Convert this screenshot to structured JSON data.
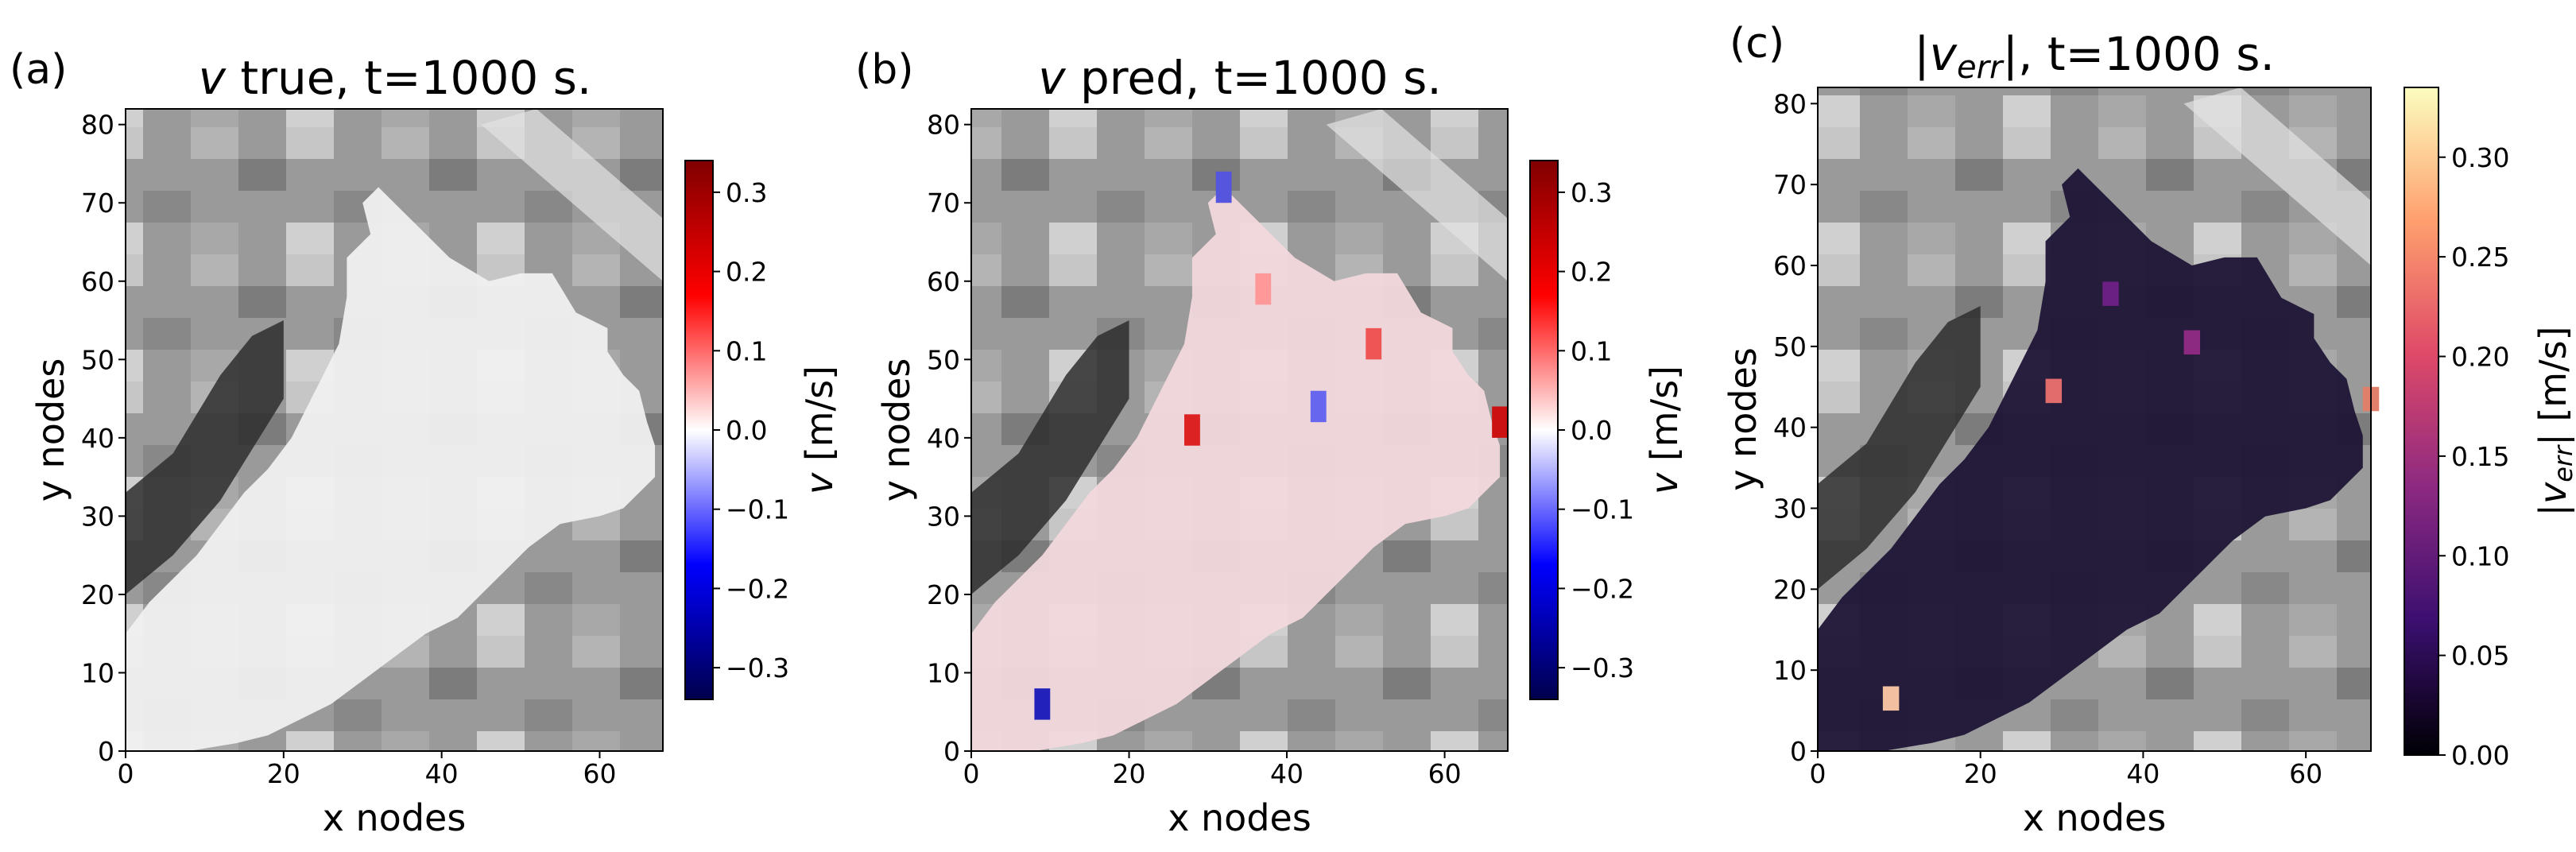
{
  "chart_data": [
    {
      "type": "heatmap",
      "panel_label": "(a)",
      "title_var": "v",
      "title_rest": " true, t=1000 s.",
      "xlabel": "x nodes",
      "ylabel": "y nodes",
      "xlim": [
        0,
        68
      ],
      "ylim": [
        0,
        82
      ],
      "xticks": [
        "0",
        "20",
        "40",
        "60"
      ],
      "yticks": [
        "0",
        "10",
        "20",
        "30",
        "40",
        "50",
        "60",
        "70",
        "80"
      ],
      "colormap": "seismic",
      "colorbar_label_var": "v",
      "colorbar_label_unit": " [m/s]",
      "colorbar_range": [
        -0.34,
        0.34
      ],
      "colorbar_ticks": [
        "0.3",
        "0.2",
        "0.1",
        "0.0",
        "−0.1",
        "−0.2",
        "−0.3"
      ],
      "field_level": 0.0
    },
    {
      "type": "heatmap",
      "panel_label": "(b)",
      "title_var": "v",
      "title_rest": " pred, t=1000 s.",
      "xlabel": "x nodes",
      "ylabel": "y nodes",
      "xlim": [
        0,
        68
      ],
      "ylim": [
        0,
        82
      ],
      "xticks": [
        "0",
        "20",
        "40",
        "60"
      ],
      "yticks": [
        "0",
        "10",
        "20",
        "30",
        "40",
        "50",
        "60",
        "70",
        "80"
      ],
      "colormap": "seismic",
      "colorbar_label_var": "v",
      "colorbar_label_unit": " [m/s]",
      "colorbar_range": [
        -0.34,
        0.34
      ],
      "colorbar_ticks": [
        "0.3",
        "0.2",
        "0.1",
        "0.0",
        "−0.1",
        "−0.2",
        "−0.3"
      ],
      "field_level": 0.02
    },
    {
      "type": "heatmap",
      "panel_label": "(c)",
      "title_var": "v",
      "title_sub": "err",
      "title_rest": ", t=1000 s.",
      "xlabel": "x nodes",
      "ylabel": "y nodes",
      "xlim": [
        0,
        68
      ],
      "ylim": [
        0,
        82
      ],
      "xticks": [
        "0",
        "20",
        "40",
        "60"
      ],
      "yticks": [
        "0",
        "10",
        "20",
        "30",
        "40",
        "50",
        "60",
        "70",
        "80"
      ],
      "colormap": "magma",
      "colorbar_label_var": "v",
      "colorbar_label_sub": "err",
      "colorbar_label_unit": " [m/s]",
      "colorbar_range": [
        0.0,
        0.335
      ],
      "colorbar_ticks": [
        "0.30",
        "0.25",
        "0.20",
        "0.15",
        "0.10",
        "0.05",
        "0.00"
      ],
      "field_level": 0.02
    }
  ],
  "colors": {
    "seismic_low": "#00004c",
    "seismic_mid": "#ffffff",
    "seismic_high": "#800000",
    "magma_low": "#000004",
    "magma_high": "#fcfdbf",
    "terrain_dark": "#2a2a2a",
    "terrain_light": "#d8d8d8"
  }
}
